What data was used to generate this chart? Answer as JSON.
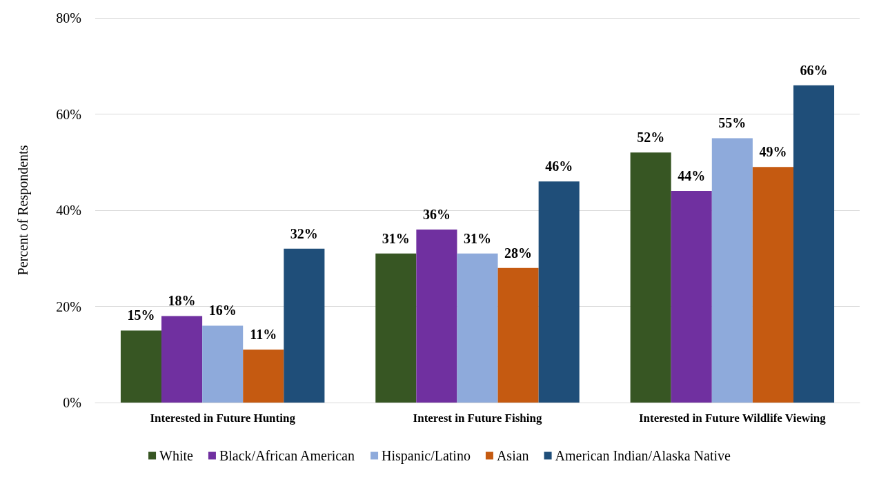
{
  "chart_data": {
    "type": "bar",
    "ylabel": "Percent of Respondents",
    "categories": [
      "Interested in Future Hunting",
      "Interest in Future Fishing",
      "Interested in Future Wildlife Viewing"
    ],
    "series": [
      {
        "name": "White",
        "color": "#375623",
        "values": [
          15,
          31,
          52
        ],
        "value_labels": [
          "15%",
          "31%",
          "52%"
        ]
      },
      {
        "name": "Black/African American",
        "color": "#7030a0",
        "values": [
          18,
          36,
          44
        ],
        "value_labels": [
          "18%",
          "36%",
          "44%"
        ]
      },
      {
        "name": "Hispanic/Latino",
        "color": "#8eaadb",
        "values": [
          16,
          31,
          55
        ],
        "value_labels": [
          "16%",
          "31%",
          "55%"
        ]
      },
      {
        "name": "Asian",
        "color": "#c55a11",
        "values": [
          11,
          28,
          49
        ],
        "value_labels": [
          "11%",
          "28%",
          "49%"
        ]
      },
      {
        "name": "American Indian/Alaska Native",
        "color": "#1f4e79",
        "values": [
          32,
          46,
          66
        ],
        "value_labels": [
          "32%",
          "46%",
          "66%"
        ]
      }
    ],
    "ylim": [
      0,
      80
    ],
    "yticks": [
      {
        "value": 0,
        "label": "0%"
      },
      {
        "value": 20,
        "label": "20%"
      },
      {
        "value": 40,
        "label": "40%"
      },
      {
        "value": 60,
        "label": "60%"
      },
      {
        "value": 80,
        "label": "80%"
      }
    ],
    "grid": "y",
    "legend": "bottom"
  }
}
